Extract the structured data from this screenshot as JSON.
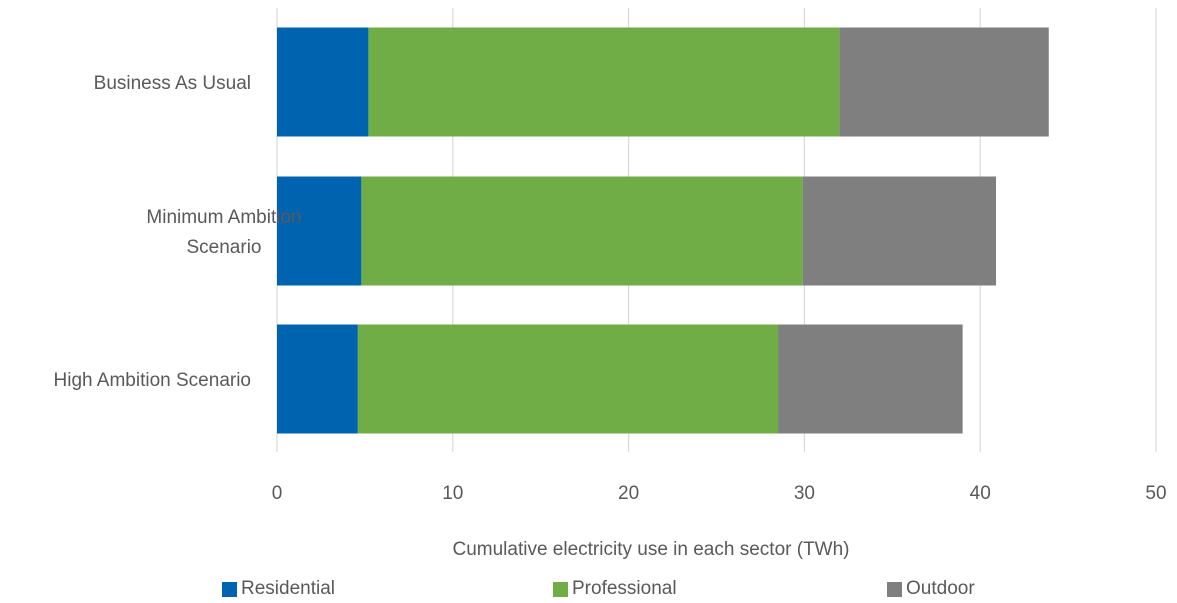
{
  "chart_data": {
    "type": "bar",
    "orientation": "horizontal",
    "stacked": true,
    "categories": [
      "Business As Usual",
      "Minimum Ambition Scenario",
      "High Ambition Scenario"
    ],
    "category_display_lines": [
      [
        "Business As Usual"
      ],
      [
        "Minimum Ambition",
        "Scenario"
      ],
      [
        "High Ambition Scenario"
      ]
    ],
    "series": [
      {
        "name": "Residential",
        "color": "#0063AF",
        "values": [
          5.2,
          4.8,
          4.6
        ]
      },
      {
        "name": "Professional",
        "color": "#70AD47",
        "values": [
          26.8,
          25.1,
          23.9
        ]
      },
      {
        "name": "Outdoor",
        "color": "#7F7F7F",
        "values": [
          11.9,
          11.0,
          10.5
        ]
      }
    ],
    "xlabel": "Cumulative electricity use in each sector (TWh)",
    "xlim": [
      0,
      50
    ],
    "xticks": [
      0,
      10,
      20,
      30,
      40,
      50
    ],
    "grid": "vertical",
    "gridline_color": "#D9D9D9",
    "legend_position": "bottom"
  }
}
